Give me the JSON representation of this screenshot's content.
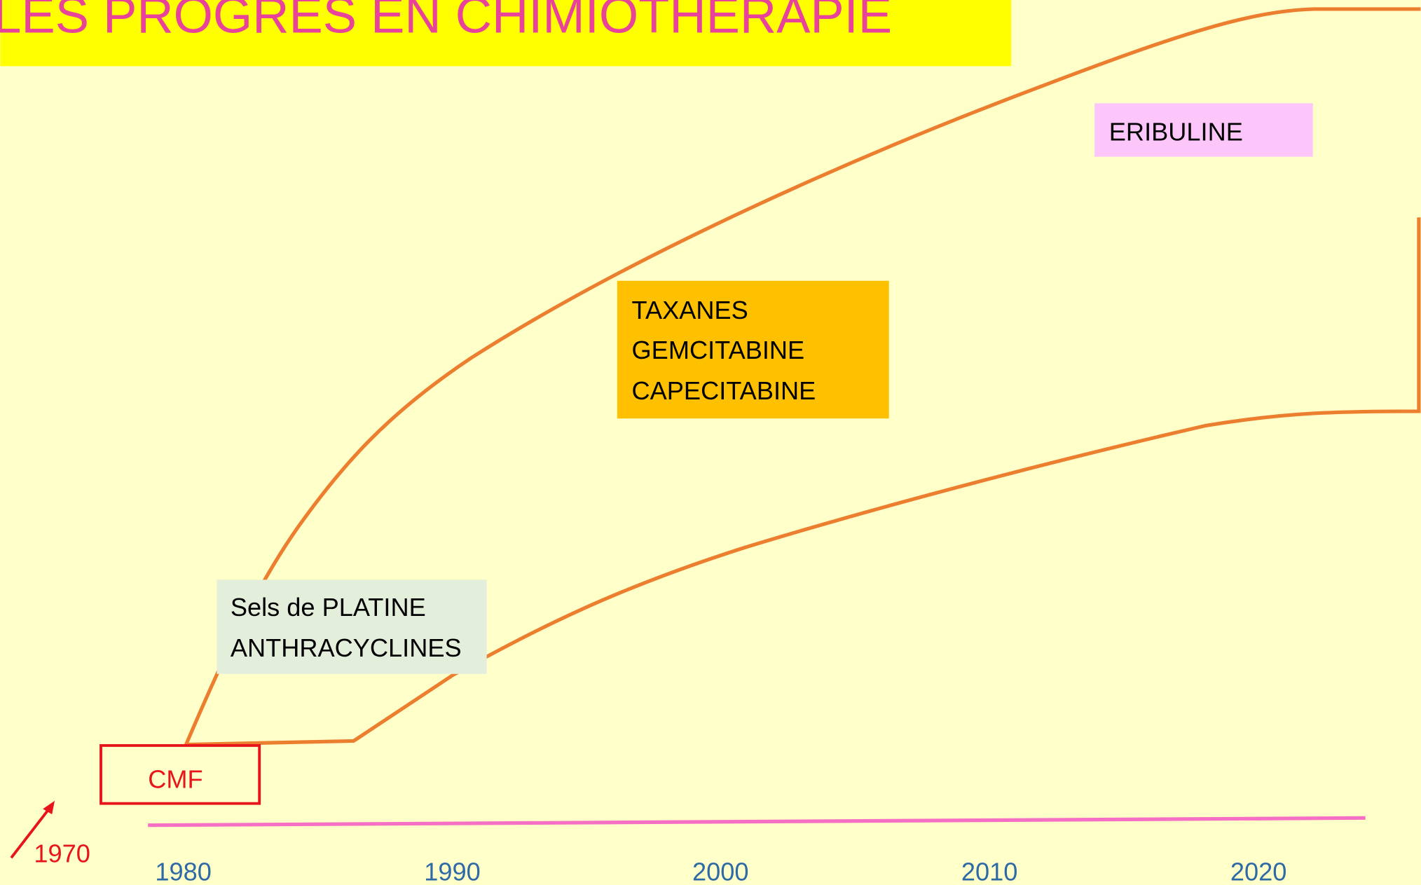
{
  "title": "LES PROGRÈS EN CHIMIOTHÉRAPIE",
  "boxes": {
    "cmf": "CMF",
    "platine": [
      "Sels de PLATINE",
      "ANTHRACYCLINES"
    ],
    "taxanes": [
      "TAXANES",
      "GEMCITABINE",
      "CAPECITABINE"
    ],
    "eribuline": "ERIBULINE"
  },
  "start_year": "1970",
  "years": [
    "1980",
    "1990",
    "2000",
    "2010",
    "2020"
  ]
}
